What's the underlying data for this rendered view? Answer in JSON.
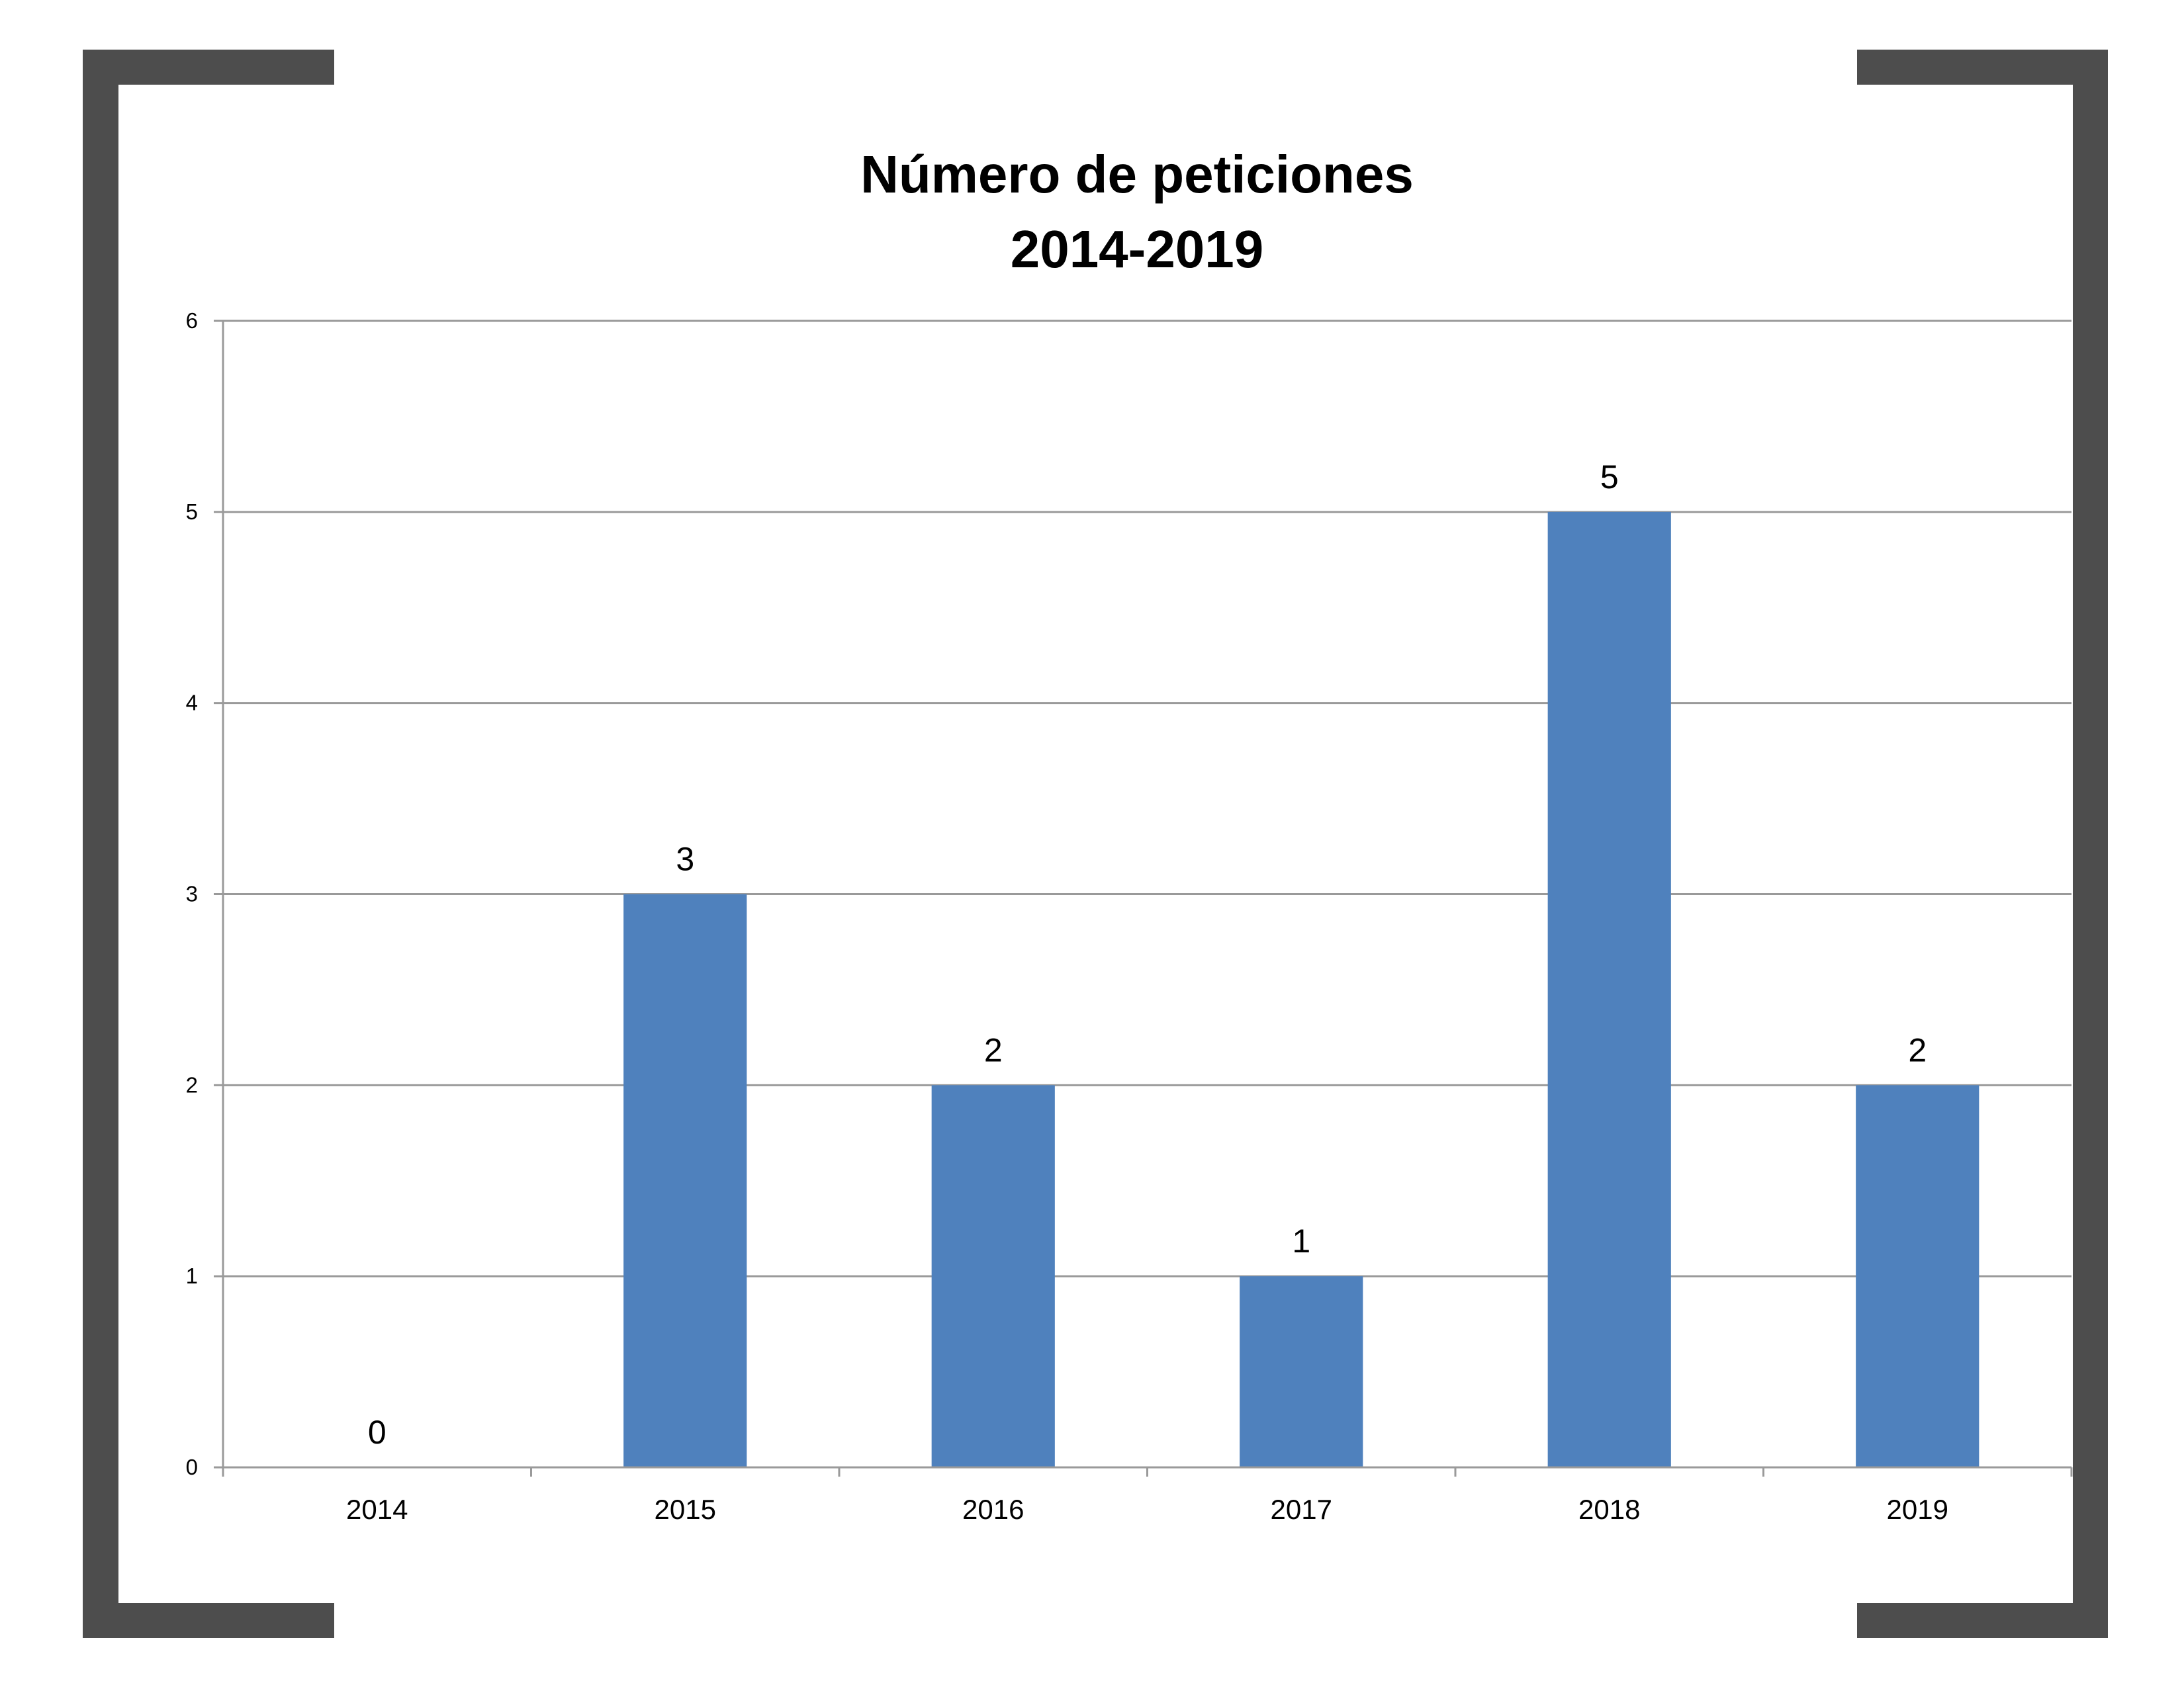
{
  "colors": {
    "bar": "#4f81bd",
    "frame": "#4d4d4d",
    "grid": "#9a9a9a"
  },
  "chart_data": {
    "type": "bar",
    "title": "Número de peticiones",
    "subtitle": "2014-2019",
    "categories": [
      "2014",
      "2015",
      "2016",
      "2017",
      "2018",
      "2019"
    ],
    "values": [
      0,
      3,
      2,
      1,
      5,
      2
    ],
    "data_labels": [
      "0",
      "3",
      "2",
      "1",
      "5",
      "2"
    ],
    "yticks": [
      "0",
      "1",
      "2",
      "3",
      "4",
      "5",
      "6"
    ],
    "ylim": [
      0,
      6
    ],
    "grid": true,
    "legend": "none"
  }
}
